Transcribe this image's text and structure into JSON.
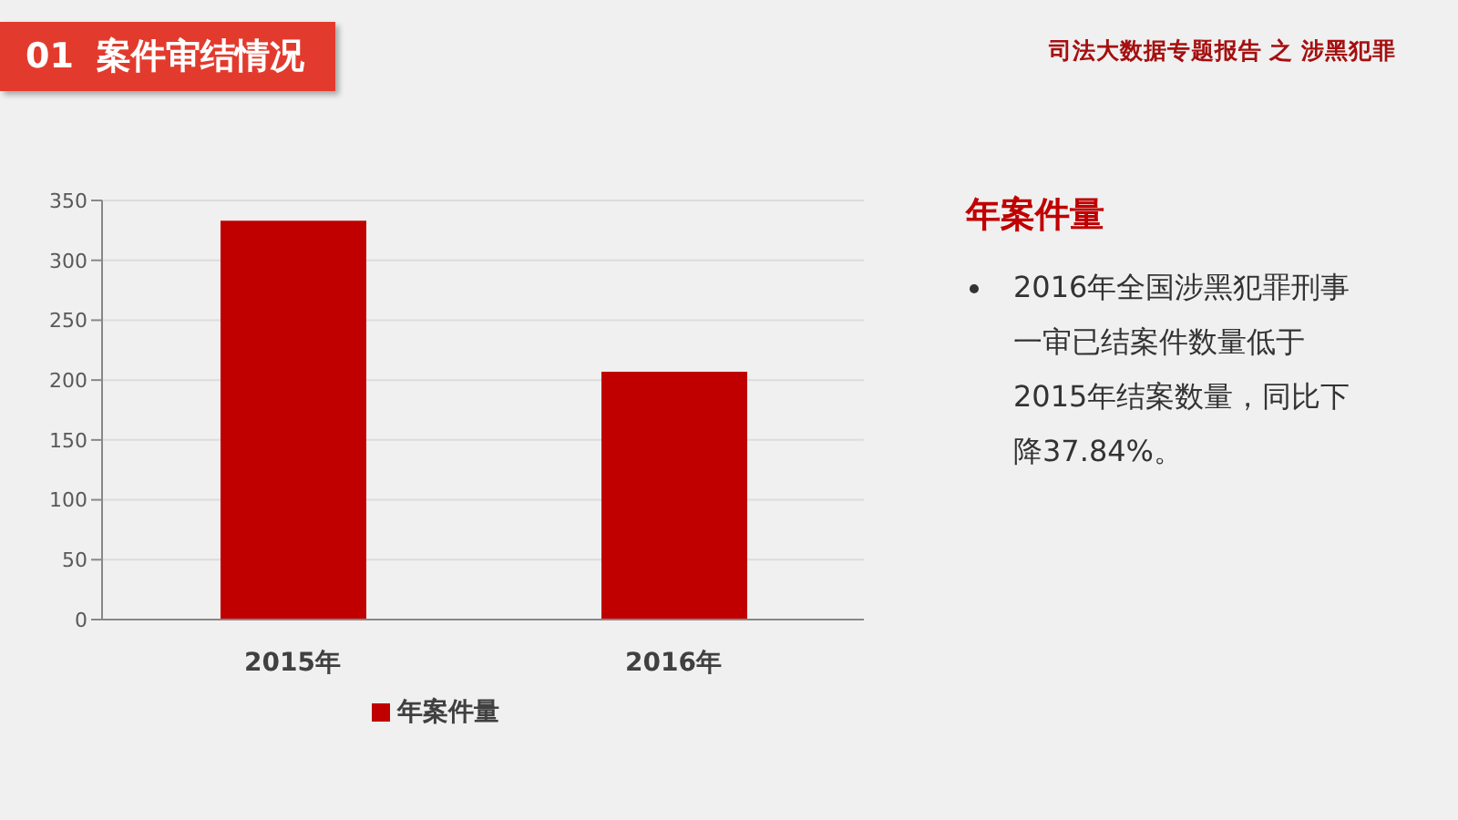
{
  "chart_data": {
    "type": "bar",
    "title": "01 案件审结情况",
    "subtitle": "司法大数据专题报告 之 涉黑犯罪",
    "categories": [
      "2015年",
      "2016年"
    ],
    "series": [
      {
        "name": "年案件量",
        "color": "#c00000",
        "values": [
          333,
          207
        ]
      }
    ],
    "ylim": [
      0,
      350
    ],
    "yticks": [
      0,
      50,
      100,
      150,
      200,
      250,
      300,
      350
    ],
    "grid": "y",
    "legend": "bottom",
    "annotations": [
      "年案件量",
      "2016年全国涉黑犯罪刑事一审已结案件数量低于2015年结案数量，同比下降37.84%。"
    ]
  }
}
